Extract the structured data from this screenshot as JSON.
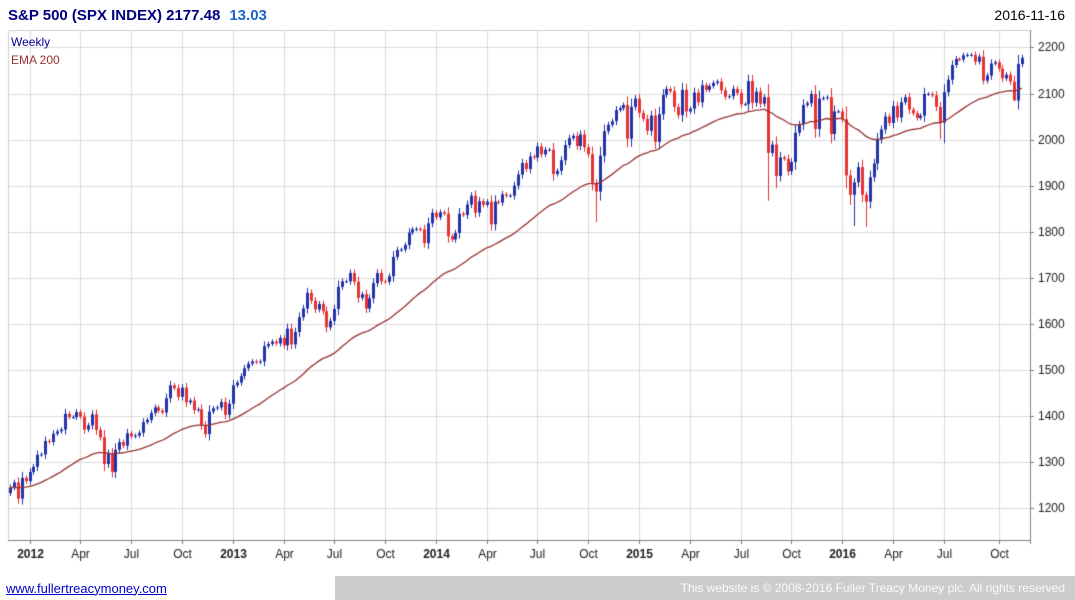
{
  "header": {
    "title": "S&P 500 (SPX INDEX) 2177.48",
    "change": "13.03",
    "date": "2016-11-16"
  },
  "footer": {
    "site_link": "www.fullertreacymoney.com",
    "copyright": "This website is © 2008-2016 Fuller Treacy Money plc. All rights reserved"
  },
  "ui_colors": {
    "title": "#000080",
    "change": "#1a66cc",
    "link": "#0000cc",
    "footer_bg": "#cccccc",
    "footer_text": "#fafafa",
    "legend_weekly": "#000099",
    "legend_ema": "#993333"
  },
  "chart_data": {
    "type": "candlestick",
    "title": "S&P 500 (SPX INDEX)",
    "frequency": "Weekly",
    "overlay_label": "EMA 200",
    "last_price": 2177.48,
    "change": 13.03,
    "date": "2016-11-16",
    "start_date": "2011-12-02",
    "week_step_days": 7,
    "ema_period": 40,
    "grid": true,
    "y_axis_side": "right",
    "y_range": [
      1130,
      2238
    ],
    "y_ticks": [
      1200,
      1300,
      1400,
      1500,
      1600,
      1700,
      1800,
      1900,
      2000,
      2100,
      2200
    ],
    "x_ticks": [
      {
        "i": 5,
        "label": "2012"
      },
      {
        "i": 18,
        "label": "Apr"
      },
      {
        "i": 31,
        "label": "Jul"
      },
      {
        "i": 44,
        "label": "Oct"
      },
      {
        "i": 57,
        "label": "2013"
      },
      {
        "i": 70,
        "label": "Apr"
      },
      {
        "i": 83,
        "label": "Jul"
      },
      {
        "i": 96,
        "label": "Oct"
      },
      {
        "i": 109,
        "label": "2014"
      },
      {
        "i": 122,
        "label": "Apr"
      },
      {
        "i": 135,
        "label": "Jul"
      },
      {
        "i": 148,
        "label": "Oct"
      },
      {
        "i": 161,
        "label": "2015"
      },
      {
        "i": 174,
        "label": "Apr"
      },
      {
        "i": 187,
        "label": "Jul"
      },
      {
        "i": 200,
        "label": "Oct"
      },
      {
        "i": 213,
        "label": "2016"
      },
      {
        "i": 226,
        "label": "Apr"
      },
      {
        "i": 239,
        "label": "Jul"
      },
      {
        "i": 253,
        "label": "Oct"
      }
    ],
    "colors": {
      "up": "#2233aa",
      "down": "#e63232",
      "ema": "#993333",
      "grid": "#dcdcdc",
      "axis_text": "#222222",
      "axis_line": "#808080",
      "border_light": "#d0d0d0"
    },
    "closes": [
      1244,
      1255,
      1220,
      1265,
      1258,
      1278,
      1289,
      1315,
      1316,
      1345,
      1343,
      1361,
      1366,
      1370,
      1404,
      1397,
      1397,
      1408,
      1398,
      1370,
      1379,
      1403,
      1369,
      1353,
      1295,
      1318,
      1278,
      1326,
      1343,
      1335,
      1362,
      1355,
      1357,
      1363,
      1386,
      1391,
      1406,
      1418,
      1411,
      1407,
      1438,
      1466,
      1460,
      1441,
      1461,
      1429,
      1433,
      1412,
      1414,
      1380,
      1360,
      1409,
      1416,
      1418,
      1430,
      1402,
      1426,
      1466,
      1472,
      1486,
      1503,
      1513,
      1518,
      1516,
      1518,
      1551,
      1556,
      1561,
      1557,
      1569,
      1553,
      1589,
      1555,
      1582,
      1614,
      1633,
      1667,
      1650,
      1631,
      1643,
      1627,
      1592,
      1606,
      1632,
      1680,
      1692,
      1692,
      1710,
      1691,
      1656,
      1664,
      1633,
      1655,
      1688,
      1710,
      1692,
      1691,
      1703,
      1745,
      1760,
      1761,
      1771,
      1798,
      1805,
      1806,
      1805,
      1775,
      1818,
      1841,
      1831,
      1842,
      1839,
      1790,
      1783,
      1797,
      1839,
      1836,
      1859,
      1878,
      1841,
      1866,
      1858,
      1865,
      1816,
      1865,
      1863,
      1881,
      1878,
      1878,
      1900,
      1924,
      1949,
      1936,
      1963,
      1961,
      1985,
      1968,
      1978,
      1978,
      1925,
      1932,
      1955,
      1988,
      2003,
      2008,
      1986,
      2011,
      1983,
      1968,
      1906,
      [
        1887,
        1821
      ],
      1965,
      2018,
      2032,
      2040,
      2064,
      2068,
      2075,
      2002,
      2071,
      2089,
      2058,
      2045,
      2019,
      2052,
      1995,
      2055,
      2097,
      2110,
      2105,
      2071,
      2053,
      2108,
      2061,
      2067,
      2102,
      2081,
      2118,
      2108,
      2116,
      2123,
      2126,
      2107,
      2093,
      2094,
      2110,
      2101,
      2077,
      2077,
      2127,
      2080,
      2104,
      2078,
      2092,
      [
        1971,
        1867
      ],
      1989,
      [
        1921,
        1894
      ],
      1961,
      1958,
      1931,
      1951,
      2015,
      2033,
      2075,
      2079,
      2099,
      2023,
      2089,
      2090,
      2092,
      2012,
      2061,
      2061,
      2044,
      1922,
      [
        1880,
        1858
      ],
      [
        1907,
        1812
      ],
      1940,
      1880,
      [
        1865,
        1810
      ],
      1918,
      1948,
      2000,
      2022,
      2050,
      2036,
      2073,
      2048,
      2081,
      2092,
      2065,
      2057,
      2047,
      2052,
      2099,
      2099,
      2096,
      2071,
      [
        2037,
        2001
      ],
      [
        2103,
        1992
      ],
      2130,
      2162,
      2175,
      2174,
      2183,
      2184,
      2184,
      2169,
      2180,
      [
        2128,
        2120
      ],
      2139,
      2165,
      2168,
      2154,
      2133,
      2141,
      2126,
      [
        2085,
        2084
      ],
      2164,
      2177.48
    ]
  }
}
